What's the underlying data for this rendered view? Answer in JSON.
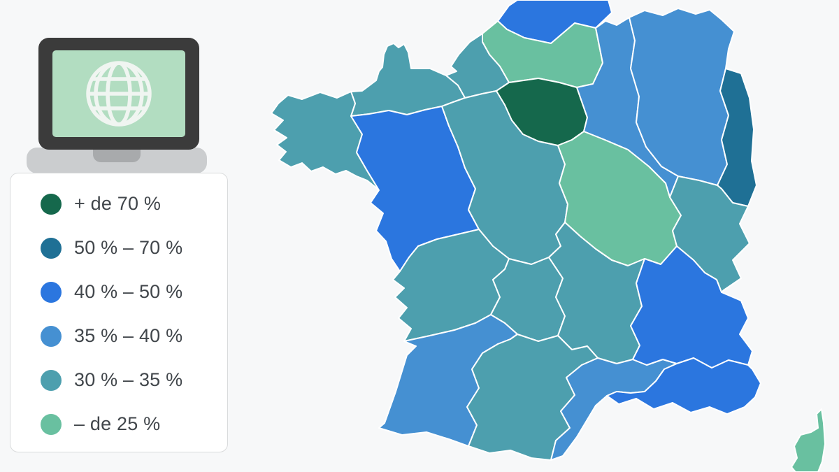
{
  "background_color": "#f7f8f9",
  "panel": {
    "background": "#ffffff",
    "border_color": "#d9dbdc"
  },
  "icon": {
    "name": "laptop-globe",
    "colors": {
      "bezel": "#3b3b3b",
      "screen": "#b2ddc1",
      "globe_stroke": "#f0f5f1",
      "base": "#cbcdcf",
      "notch": "#a8aaac"
    }
  },
  "legend": {
    "items": [
      {
        "label": "+ de 70 %",
        "color": "#15684c"
      },
      {
        "label": "50 % – 70 %",
        "color": "#1f7095"
      },
      {
        "label": "40 % – 50 %",
        "color": "#2b76df"
      },
      {
        "label": "35 % – 40 %",
        "color": "#4590d2"
      },
      {
        "label": "30 % – 35 %",
        "color": "#4d9fae"
      },
      {
        "label": "– de 25 %",
        "color": "#69c0a0"
      }
    ]
  },
  "chart_data": {
    "type": "choropleth",
    "title": "",
    "geography": "France (22 régions)",
    "legend_position": "left",
    "classes": [
      "+ de 70 %",
      "50 % – 70 %",
      "40 % – 50 %",
      "35 % – 40 %",
      "30 % – 35 %",
      "– de 25 %"
    ],
    "class_colors": {
      "+ de 70 %": "#15684c",
      "50 % – 70 %": "#1f7095",
      "40 % – 50 %": "#2b76df",
      "35 % – 40 %": "#4590d2",
      "30 % – 35 %": "#4d9fae",
      "– de 25 %": "#69c0a0"
    },
    "border_color": "#ffffff",
    "regions": [
      {
        "id": "nord_pas_de_calais",
        "name": "Nord-Pas-de-Calais",
        "value": "40 % – 50 %",
        "color": "#2b76df"
      },
      {
        "id": "picardie",
        "name": "Picardie",
        "value": "– de 25 %",
        "color": "#69c0a0"
      },
      {
        "id": "haute_normandie",
        "name": "Haute-Normandie",
        "value": "30 % – 35 %",
        "color": "#4d9fae"
      },
      {
        "id": "basse_normandie",
        "name": "Basse-Normandie",
        "value": "30 % – 35 %",
        "color": "#4d9fae"
      },
      {
        "id": "bretagne",
        "name": "Bretagne",
        "value": "30 % – 35 %",
        "color": "#4d9fae"
      },
      {
        "id": "pays_de_la_loire",
        "name": "Pays de la Loire",
        "value": "40 % – 50 %",
        "color": "#2b76df"
      },
      {
        "id": "centre",
        "name": "Centre",
        "value": "30 % – 35 %",
        "color": "#4d9fae"
      },
      {
        "id": "ile_de_france",
        "name": "Île-de-France",
        "value": "+ de 70 %",
        "color": "#15684c"
      },
      {
        "id": "champagne_ardenne",
        "name": "Champagne-Ardenne",
        "value": "35 % – 40 %",
        "color": "#4590d2"
      },
      {
        "id": "lorraine",
        "name": "Lorraine",
        "value": "35 % – 40 %",
        "color": "#4590d2"
      },
      {
        "id": "alsace",
        "name": "Alsace",
        "value": "50 % – 70 %",
        "color": "#1f7095"
      },
      {
        "id": "bourgogne",
        "name": "Bourgogne",
        "value": "– de 25 %",
        "color": "#69c0a0"
      },
      {
        "id": "franche_comte",
        "name": "Franche-Comté",
        "value": "30 % – 35 %",
        "color": "#4d9fae"
      },
      {
        "id": "poitou_charentes",
        "name": "Poitou-Charentes",
        "value": "30 % – 35 %",
        "color": "#4d9fae"
      },
      {
        "id": "limousin",
        "name": "Limousin",
        "value": "30 % – 35 %",
        "color": "#4d9fae"
      },
      {
        "id": "auvergne",
        "name": "Auvergne",
        "value": "30 % – 35 %",
        "color": "#4d9fae"
      },
      {
        "id": "aquitaine",
        "name": "Aquitaine",
        "value": "35 % – 40 %",
        "color": "#4590d2"
      },
      {
        "id": "midi_pyrenees",
        "name": "Midi-Pyrénées",
        "value": "30 % – 35 %",
        "color": "#4d9fae"
      },
      {
        "id": "languedoc_roussillon",
        "name": "Languedoc-Roussillon",
        "value": "35 % – 40 %",
        "color": "#4590d2"
      },
      {
        "id": "rhone_alpes",
        "name": "Rhône-Alpes",
        "value": "40 % – 50 %",
        "color": "#2b76df"
      },
      {
        "id": "paca",
        "name": "Provence-Alpes-Côte d'Azur",
        "value": "40 % – 50 %",
        "color": "#2b76df"
      },
      {
        "id": "corse",
        "name": "Corse",
        "value": "– de 25 %",
        "color": "#69c0a0"
      }
    ]
  }
}
